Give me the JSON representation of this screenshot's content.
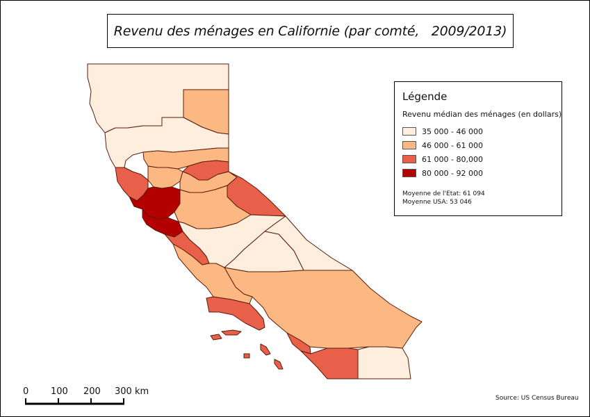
{
  "title": "Revenu des ménages en Californie (par comté,   2009/2013)",
  "legend": {
    "title": "Légende",
    "subtitle": "Revenu médian des ménages (en dollars)",
    "classes": [
      {
        "label": "35 000 - 46 000",
        "color": "#fdeedd"
      },
      {
        "label": "46 000 - 61 000",
        "color": "#fcb882"
      },
      {
        "label": "61 000 - 80,000",
        "color": "#e9604a"
      },
      {
        "label": "80 000 - 92 000",
        "color": "#b30000"
      }
    ],
    "state_average": "Moyenne de l'Etat: 61 094",
    "usa_average": "Moyenne USA: 53 046"
  },
  "source": "Source: US Census Bureau",
  "scale_bar": {
    "labels": [
      "0",
      "100",
      "200",
      "300 km"
    ]
  },
  "border_color": "#5a1a0a"
}
